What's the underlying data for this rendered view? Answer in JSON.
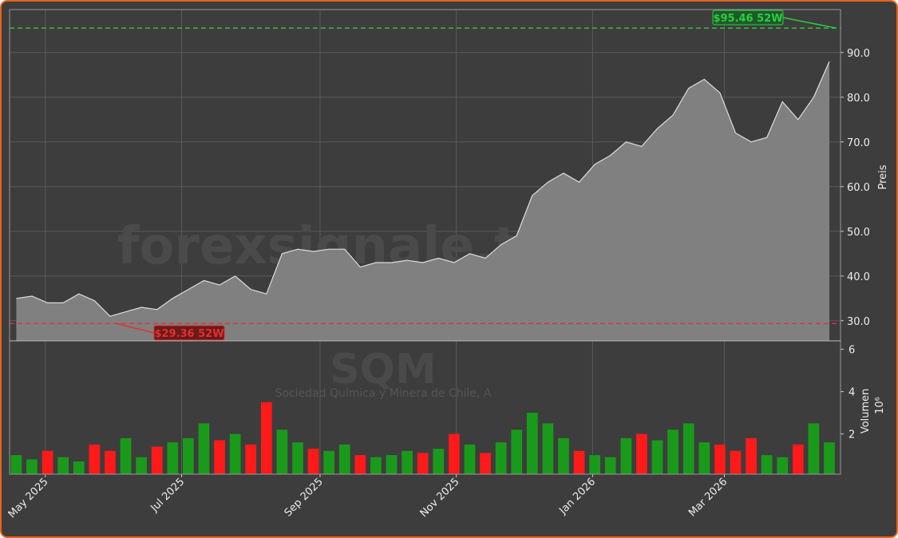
{
  "chart_data": {
    "type": "area",
    "watermark": "forexsignale.trade",
    "title": "SQM",
    "subtitle": "Sociedad Química y Minera de Chile, A",
    "ylabel": "Preis",
    "volume_label": "Volumen",
    "volume_unit": "10⁶",
    "x": [
      "2025-04-18",
      "2025-04-25",
      "2025-05-02",
      "2025-05-09",
      "2025-05-16",
      "2025-05-23",
      "2025-05-30",
      "2025-06-06",
      "2025-06-13",
      "2025-06-20",
      "2025-06-27",
      "2025-07-04",
      "2025-07-11",
      "2025-07-18",
      "2025-07-25",
      "2025-08-01",
      "2025-08-08",
      "2025-08-15",
      "2025-08-22",
      "2025-08-29",
      "2025-09-05",
      "2025-09-12",
      "2025-09-19",
      "2025-09-26",
      "2025-10-03",
      "2025-10-10",
      "2025-10-17",
      "2025-10-24",
      "2025-10-31",
      "2025-11-07",
      "2025-11-14",
      "2025-11-21",
      "2025-11-28",
      "2025-12-05",
      "2025-12-12",
      "2025-12-19",
      "2025-12-26",
      "2026-01-02",
      "2026-01-09",
      "2026-01-16",
      "2026-01-23",
      "2026-01-30",
      "2026-02-06",
      "2026-02-13",
      "2026-02-20",
      "2026-02-27",
      "2026-03-06",
      "2026-03-13",
      "2026-03-20",
      "2026-03-27",
      "2026-04-03",
      "2026-04-10",
      "2026-04-17"
    ],
    "values": [
      35,
      35.5,
      34,
      34,
      36,
      34.5,
      31,
      32,
      33,
      32.5,
      35,
      37,
      39,
      38,
      40,
      37,
      36,
      45,
      46,
      45.5,
      46,
      46,
      42,
      43,
      43,
      43.5,
      43,
      44,
      43,
      45,
      44,
      47,
      49,
      58,
      61,
      63,
      61,
      65,
      67,
      70,
      69,
      73,
      76,
      82,
      84,
      81,
      72,
      70,
      71,
      79,
      75,
      80,
      88
    ],
    "volume": [
      1.0,
      0.8,
      1.2,
      0.9,
      0.7,
      1.5,
      1.2,
      1.8,
      0.9,
      1.4,
      1.6,
      1.8,
      2.5,
      1.7,
      2.0,
      1.5,
      3.5,
      2.2,
      1.6,
      1.3,
      1.2,
      1.5,
      1.0,
      0.9,
      1.0,
      1.2,
      1.1,
      1.3,
      2.0,
      1.5,
      1.1,
      1.6,
      2.2,
      3.0,
      2.5,
      1.8,
      1.2,
      1.0,
      0.9,
      1.8,
      2.0,
      1.7,
      2.2,
      2.5,
      1.6,
      1.5,
      1.2,
      1.8,
      1.0,
      0.9,
      1.5,
      2.5,
      1.6
    ],
    "color": "#808080",
    "up_color": "#1a9a1a",
    "down_color": "#ff1a1a",
    "xlim": [
      "2025-04-15",
      "2026-04-22"
    ],
    "xticks": [
      {
        "value": "2025-05-01",
        "label": "May 2025"
      },
      {
        "value": "2025-07-01",
        "label": "Jul 2025"
      },
      {
        "value": "2025-09-01",
        "label": "Sep 2025"
      },
      {
        "value": "2025-11-01",
        "label": "Nov 2025"
      },
      {
        "value": "2026-01-01",
        "label": "Jan 2026"
      },
      {
        "value": "2026-03-01",
        "label": "Mar 2026"
      }
    ],
    "ylim": [
      25.5,
      99.6
    ],
    "yticks": [
      {
        "value": 30,
        "label": "30.0"
      },
      {
        "value": 40,
        "label": "40.0"
      },
      {
        "value": 50,
        "label": "50.0"
      },
      {
        "value": 60,
        "label": "60.0"
      },
      {
        "value": 70,
        "label": "70.0"
      },
      {
        "value": 80,
        "label": "80.0"
      },
      {
        "value": 90,
        "label": "90.0"
      }
    ],
    "volume_ylim": [
      0.1,
      6.4
    ],
    "volume_yticks": [
      2,
      4,
      6
    ],
    "grid": true,
    "annotations": [
      {
        "value": 95.46,
        "label": "$95.46 52W",
        "x": "2026-04-20",
        "color": "#2ecc40"
      },
      {
        "value": 29.36,
        "label": "$29.36 52W",
        "x": "2025-06-02",
        "color": "#e03030"
      }
    ]
  }
}
